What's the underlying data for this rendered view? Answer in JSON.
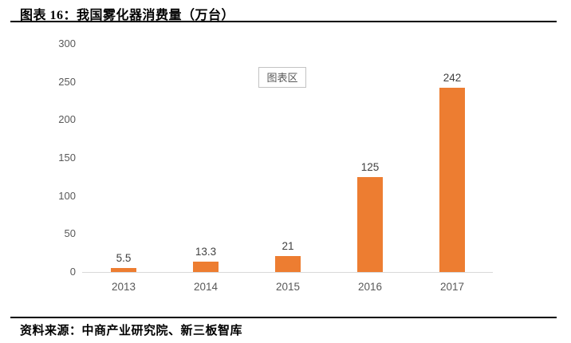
{
  "header": {
    "title": "图表 16：我国雾化器消费量（万台）"
  },
  "footer": {
    "source": "资料来源：中商产业研究院、新三板智库"
  },
  "overlay": {
    "chart_area_label": "图表区"
  },
  "chart_data": {
    "type": "bar",
    "title": "我国雾化器消费量（万台）",
    "categories": [
      "2013",
      "2014",
      "2015",
      "2016",
      "2017"
    ],
    "values": [
      5.5,
      13.3,
      21,
      125,
      242
    ],
    "data_labels": [
      "5.5",
      "13.3",
      "21",
      "125",
      "242"
    ],
    "xlabel": "",
    "ylabel": "",
    "ylim": [
      0,
      300
    ],
    "yticks": [
      0,
      50,
      100,
      150,
      200,
      250,
      300
    ],
    "grid": false,
    "legend": "none",
    "bar_color": "#ED7D31",
    "axis_line_color": "#D9D9D9",
    "tick_label_color": "#595959",
    "data_label_color": "#404040"
  }
}
